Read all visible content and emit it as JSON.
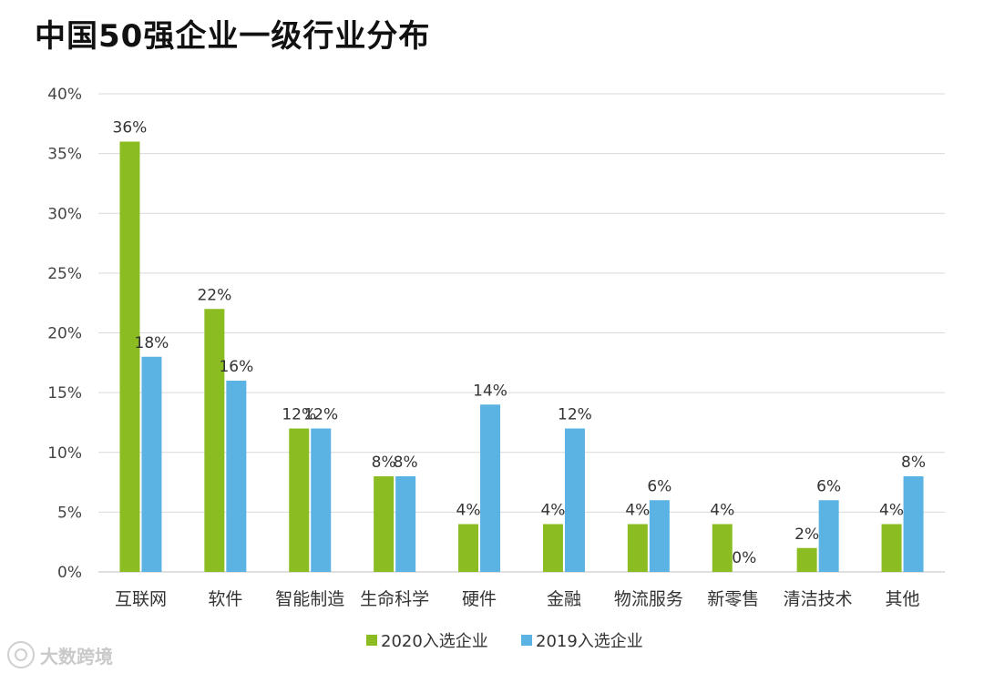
{
  "chart_data": {
    "type": "bar",
    "title": "中国50强企业一级行业分布",
    "categories": [
      "互联网",
      "软件",
      "智能制造",
      "生命科学",
      "硬件",
      "金融",
      "物流服务",
      "新零售",
      "清洁技术",
      "其他"
    ],
    "series": [
      {
        "name": "2020入选企业",
        "color": "#8bbd22",
        "values": [
          36,
          22,
          12,
          8,
          4,
          4,
          4,
          4,
          2,
          4
        ]
      },
      {
        "name": "2019入选企业",
        "color": "#5bb3e3",
        "values": [
          18,
          16,
          12,
          8,
          14,
          12,
          6,
          0,
          6,
          8
        ]
      }
    ],
    "value_suffix": "%",
    "ylim": [
      0,
      40
    ],
    "yticks": [
      "0%",
      "5%",
      "10%",
      "15%",
      "20%",
      "25%",
      "30%",
      "35%",
      "40%"
    ],
    "grid": true,
    "legend": "bottom-center",
    "xlabel": "",
    "ylabel": ""
  },
  "watermark": {
    "text": "大数跨境"
  }
}
